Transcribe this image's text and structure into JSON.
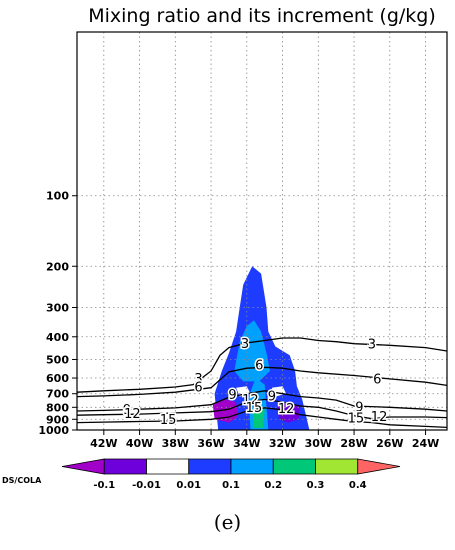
{
  "chart_data": {
    "type": "contour",
    "title": "Mixing ratio and its increment (g/kg)",
    "xlabel": "",
    "ylabel": "",
    "x_ticks": [
      "42W",
      "40W",
      "38W",
      "36W",
      "34W",
      "32W",
      "30W",
      "28W",
      "26W",
      "24W"
    ],
    "x_tick_values": [
      -42,
      -40,
      -38,
      -36,
      -34,
      -32,
      -30,
      -28,
      -26,
      -24
    ],
    "xlim": [
      -43.5,
      -22.8
    ],
    "y_scale": "log",
    "y_reversed": true,
    "y_ticks": [
      100,
      200,
      300,
      400,
      500,
      600,
      700,
      800,
      900,
      1000
    ],
    "ylim": [
      1000,
      20
    ],
    "grid": true,
    "contour_lines": [
      {
        "level": 3,
        "label": "3",
        "x": [
          -43.5,
          -42,
          -40,
          -38,
          -37,
          -36,
          -35.5,
          -35,
          -34,
          -33,
          -32,
          -31,
          -30,
          -29,
          -28,
          -26,
          -24,
          -22.8
        ],
        "p": [
          690,
          680,
          670,
          655,
          640,
          560,
          480,
          445,
          425,
          415,
          405,
          405,
          415,
          420,
          428,
          435,
          445,
          460
        ]
      },
      {
        "level": 6,
        "label": "6",
        "x": [
          -43.5,
          -42,
          -40,
          -38,
          -36,
          -35,
          -34,
          -33,
          -32,
          -31,
          -30,
          -28,
          -26,
          -24,
          -22.8
        ],
        "p": [
          720,
          715,
          705,
          690,
          660,
          565,
          545,
          540,
          545,
          560,
          570,
          585,
          605,
          625,
          645
        ]
      },
      {
        "level": 9,
        "label": "9",
        "x": [
          -43.5,
          -42,
          -40,
          -38,
          -36,
          -35,
          -34,
          -33,
          -32,
          -31,
          -30,
          -29,
          -28,
          -26,
          -24,
          -22.8
        ],
        "p": [
          830,
          825,
          815,
          805,
          780,
          725,
          700,
          680,
          700,
          720,
          730,
          745,
          790,
          800,
          815,
          830
        ]
      },
      {
        "level": 12,
        "label": "12",
        "x": [
          -43.5,
          -42,
          -40,
          -38,
          -36,
          -35,
          -34,
          -33,
          -32,
          -31,
          -30,
          -29,
          -28,
          -27,
          -26,
          -24,
          -22.8
        ],
        "p": [
          865,
          860,
          855,
          845,
          835,
          815,
          760,
          740,
          760,
          790,
          800,
          830,
          870,
          895,
          880,
          880,
          885
        ]
      },
      {
        "level": 15,
        "label": "15",
        "x": [
          -43.5,
          -42,
          -40,
          -38,
          -36,
          -35,
          -34,
          -33,
          -32,
          -31,
          -30,
          -29,
          -28,
          -27,
          -26,
          -24,
          -22.8
        ],
        "p": [
          930,
          925,
          920,
          915,
          900,
          880,
          830,
          805,
          820,
          860,
          880,
          900,
          920,
          930,
          950,
          965,
          975
        ]
      }
    ],
    "contour_labels": [
      {
        "text": "3",
        "x": -36.7,
        "p": 605
      },
      {
        "text": "3",
        "x": -27.0,
        "p": 432
      },
      {
        "text": "3",
        "x": -34.1,
        "p": 430
      },
      {
        "text": "6",
        "x": -36.7,
        "p": 660
      },
      {
        "text": "6",
        "x": -26.7,
        "p": 608
      },
      {
        "text": "6",
        "x": -33.3,
        "p": 530
      },
      {
        "text": "9",
        "x": -40.7,
        "p": 820
      },
      {
        "text": "9",
        "x": -34.8,
        "p": 710
      },
      {
        "text": "9",
        "x": -32.6,
        "p": 720
      },
      {
        "text": "9",
        "x": -27.7,
        "p": 800
      },
      {
        "text": "12",
        "x": -40.4,
        "p": 855
      },
      {
        "text": "12",
        "x": -33.8,
        "p": 745
      },
      {
        "text": "12",
        "x": -31.8,
        "p": 815
      },
      {
        "text": "12",
        "x": -26.6,
        "p": 878
      },
      {
        "text": "15",
        "x": -38.4,
        "p": 905
      },
      {
        "text": "15",
        "x": -33.6,
        "p": 805
      },
      {
        "text": "15",
        "x": -27.9,
        "p": 895
      }
    ],
    "colorbar": {
      "labels": [
        "-0.1",
        "-0.01",
        "0.01",
        "0.1",
        "0.2",
        "0.3",
        "0.4"
      ],
      "colors": [
        "#a000c8",
        "#6e00dc",
        "#ffffff",
        "#1e3cff",
        "#00a0ff",
        "#00c878",
        "#a0e632",
        "#ff6464"
      ],
      "credit": "DS/COLA"
    }
  },
  "panel_label": "(e)"
}
